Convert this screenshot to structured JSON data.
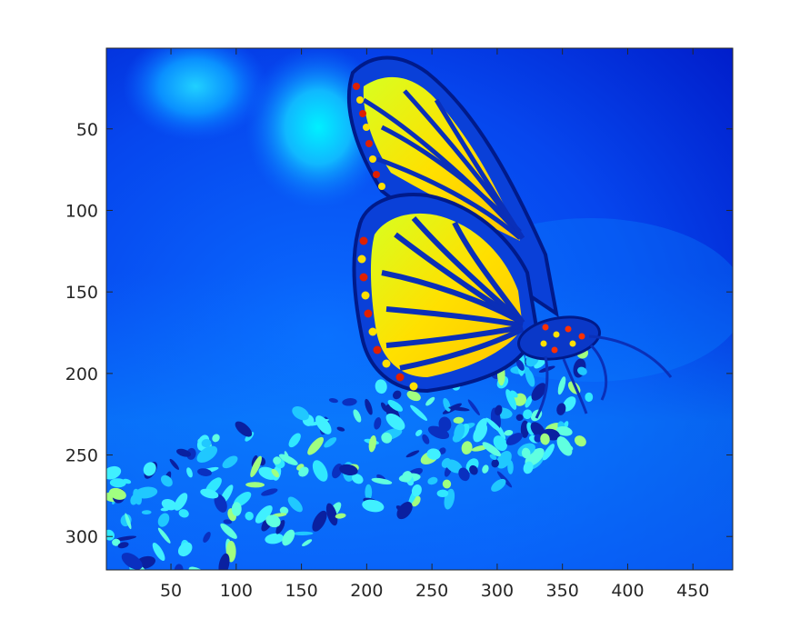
{
  "chart_data": {
    "type": "heatmap",
    "colormap": "jet",
    "title": "",
    "xlabel": "",
    "ylabel": "",
    "xlim": [
      0.5,
      480.5
    ],
    "ylim": [
      0.5,
      320.5
    ],
    "y_reversed": true,
    "grid": false,
    "legend": "none",
    "x_ticks": [
      50,
      100,
      150,
      200,
      250,
      300,
      350,
      400,
      450
    ],
    "y_ticks": [
      50,
      100,
      150,
      200,
      250,
      300
    ],
    "x_tick_labels": [
      "50",
      "100",
      "150",
      "200",
      "250",
      "300",
      "350",
      "400",
      "450"
    ],
    "y_tick_labels": [
      "50",
      "100",
      "150",
      "200",
      "250",
      "300"
    ],
    "subject": "monarch butterfly on flower spike",
    "colors": {
      "background_dark": "#0010c8",
      "background_mid": "#0050ff",
      "glow": "#00e8ff",
      "wing_fill": "#ffe000",
      "wing_spot": "#e02000",
      "vein": "#0020a0",
      "flower": "#30e0ff"
    }
  }
}
